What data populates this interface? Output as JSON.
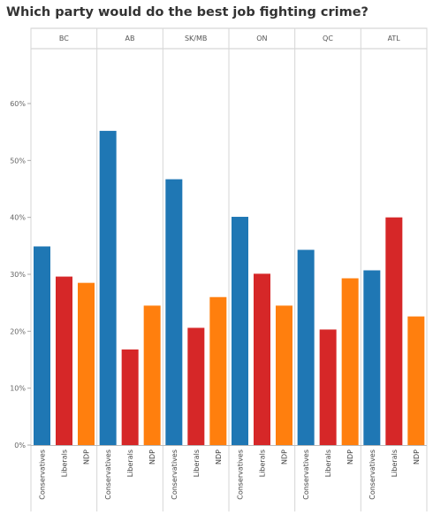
{
  "chart_data": {
    "type": "bar",
    "title": "Which party would do the best job fighting crime?",
    "xlabel": "",
    "ylabel": "",
    "ylim": [
      0,
      70
    ],
    "y_ticks": [
      "0%",
      "10%",
      "20%",
      "30%",
      "40%",
      "50%",
      "60%"
    ],
    "grid": false,
    "legend": "none",
    "panels": [
      "BC",
      "AB",
      "SK/MB",
      "ON",
      "QC",
      "ATL"
    ],
    "categories": [
      "Conservatives",
      "Liberals",
      "NDP"
    ],
    "colors": {
      "Conservatives": "#1f77b4",
      "Liberals": "#d62728",
      "NDP": "#ff7f0e"
    },
    "values": [
      [
        34.9,
        29.6,
        28.5
      ],
      [
        55.2,
        16.8,
        24.5
      ],
      [
        46.7,
        20.6,
        26.0
      ],
      [
        40.1,
        30.1,
        24.5
      ],
      [
        34.3,
        20.3,
        29.3
      ],
      [
        30.7,
        40.0,
        22.6
      ]
    ]
  }
}
